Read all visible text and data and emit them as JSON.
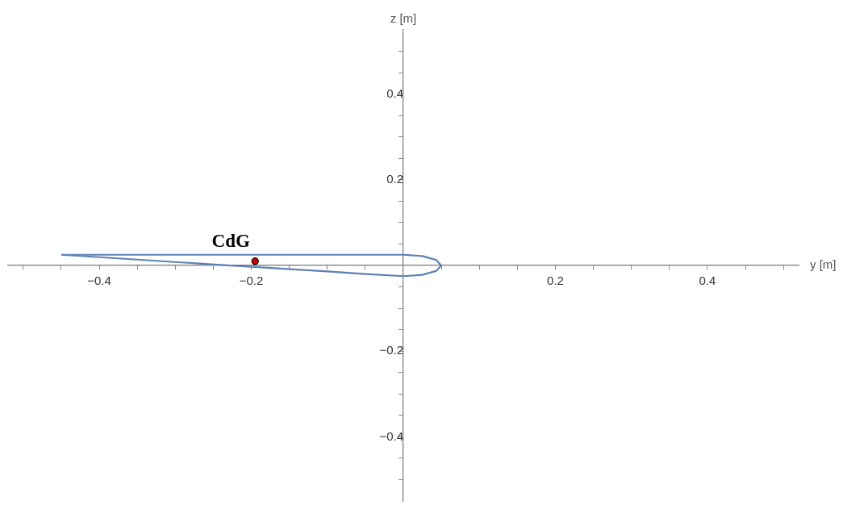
{
  "chart_data": {
    "type": "line",
    "xlabel": "y [m]",
    "ylabel": "z [m]",
    "xlim": [
      -0.52,
      0.52
    ],
    "ylim": [
      -0.55,
      0.55
    ],
    "xticks": [
      {
        "value": -0.5,
        "label": null
      },
      {
        "value": -0.45,
        "label": null
      },
      -0.4,
      {
        "value": -0.35,
        "label": null
      },
      {
        "value": -0.3,
        "label": null
      },
      {
        "value": -0.25,
        "label": null
      },
      -0.2,
      {
        "value": -0.15,
        "label": null
      },
      {
        "value": -0.1,
        "label": null
      },
      {
        "value": -0.05,
        "label": null
      },
      {
        "value": 0.05,
        "label": null
      },
      {
        "value": 0.1,
        "label": null
      },
      {
        "value": 0.15,
        "label": null
      },
      0.2,
      {
        "value": 0.25,
        "label": null
      },
      {
        "value": 0.3,
        "label": null
      },
      {
        "value": 0.35,
        "label": null
      },
      0.4,
      {
        "value": 0.45,
        "label": null
      },
      {
        "value": 0.5,
        "label": null
      }
    ],
    "yticks": [
      {
        "value": -0.5,
        "label": null
      },
      {
        "value": -0.45,
        "label": null
      },
      -0.4,
      {
        "value": -0.35,
        "label": null
      },
      {
        "value": -0.3,
        "label": null
      },
      {
        "value": -0.25,
        "label": null
      },
      -0.2,
      {
        "value": -0.15,
        "label": null
      },
      {
        "value": -0.1,
        "label": null
      },
      {
        "value": -0.05,
        "label": null
      },
      {
        "value": 0.05,
        "label": null
      },
      {
        "value": 0.1,
        "label": null
      },
      {
        "value": 0.15,
        "label": null
      },
      0.2,
      {
        "value": 0.25,
        "label": null
      },
      {
        "value": 0.3,
        "label": null
      },
      {
        "value": 0.35,
        "label": null
      },
      0.4,
      {
        "value": 0.45,
        "label": null
      },
      {
        "value": 0.5,
        "label": null
      }
    ],
    "series": [
      {
        "color": "#5e81b5",
        "x": [
          -0.45,
          -0.2,
          0,
          0.025,
          0.043,
          0.05
        ],
        "values": [
          0.025,
          0.025,
          0.025,
          0.022,
          0.013,
          0
        ]
      },
      {
        "color": "#5e81b5",
        "x": [
          -0.45,
          -0.3,
          -0.2,
          -0.1,
          -0.05,
          0,
          0.025,
          0.043,
          0.05
        ],
        "values": [
          0.025,
          0.008,
          -0.003,
          -0.014,
          -0.02,
          -0.025,
          -0.022,
          -0.013,
          0
        ]
      },
      {
        "type": "scatter",
        "color": "#cc0000",
        "x": [
          -0.195
        ],
        "values": [
          0.01
        ]
      }
    ],
    "annotations": [
      {
        "text": "CdG",
        "x": -0.195,
        "y": 0.01
      }
    ],
    "grid": false,
    "legend": false
  }
}
